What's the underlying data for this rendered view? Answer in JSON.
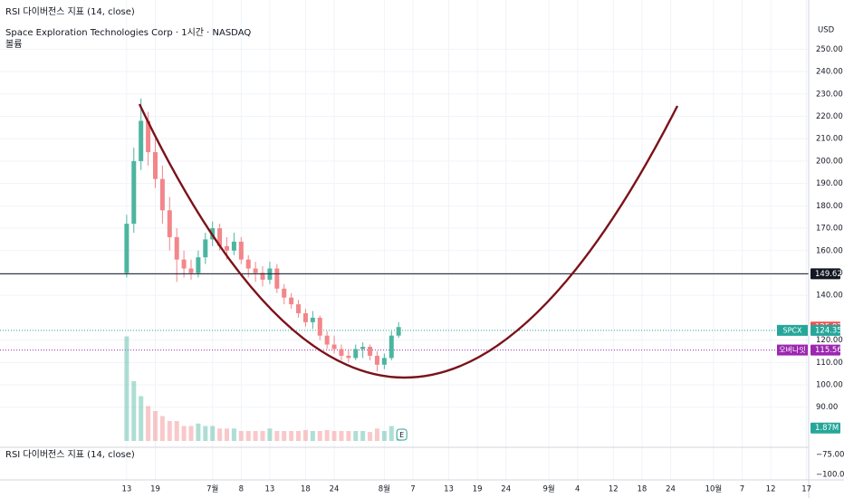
{
  "header": {
    "indicator": "RSI 다이버전스 지표 (14, close)",
    "symbol_line": "Space Exploration Technologies Corp · 1시간 · NASDAQ",
    "volume_label": "볼륨"
  },
  "chart_data": {
    "type": "candlestick",
    "currency": "USD",
    "x": [
      0,
      1,
      2,
      3,
      4,
      5,
      6,
      7,
      8,
      9,
      10,
      11,
      12,
      13,
      14,
      15,
      16,
      17,
      18,
      19,
      20,
      21,
      22,
      23,
      24,
      25,
      26,
      27,
      28,
      29,
      30,
      31,
      32,
      33,
      34,
      35,
      36,
      37,
      38
    ],
    "open": [
      150,
      172,
      200,
      218,
      204,
      192,
      178,
      166,
      156,
      152,
      150,
      157,
      165,
      170,
      162,
      160,
      164,
      156,
      152,
      150,
      147,
      152,
      143,
      139,
      136,
      132,
      128,
      130,
      122,
      118,
      116,
      113,
      112,
      116,
      117,
      113,
      109,
      112,
      122
    ],
    "high": [
      176,
      206,
      228,
      222,
      210,
      198,
      184,
      170,
      160,
      156,
      160,
      168,
      173,
      172,
      166,
      168,
      166,
      158,
      155,
      153,
      155,
      154,
      145,
      141,
      138,
      134,
      133,
      131,
      124,
      122,
      118,
      116,
      118,
      119,
      118,
      115,
      114,
      124,
      128
    ],
    "low": [
      148,
      168,
      196,
      198,
      188,
      172,
      160,
      146,
      148,
      147,
      148,
      154,
      162,
      160,
      156,
      158,
      154,
      148,
      146,
      144,
      145,
      141,
      136,
      134,
      130,
      126,
      125,
      120,
      116,
      114,
      111,
      110,
      111,
      112,
      111,
      106,
      107,
      111,
      121
    ],
    "close": [
      172,
      200,
      218,
      204,
      192,
      178,
      166,
      156,
      152,
      150,
      157,
      165,
      170,
      162,
      160,
      164,
      156,
      152,
      150,
      147,
      152,
      143,
      139,
      136,
      132,
      128,
      130,
      122,
      118,
      116,
      113,
      112,
      116,
      117,
      113,
      109,
      112,
      122,
      125.82
    ],
    "volume": {
      "values": [
        21,
        12,
        9,
        7,
        6,
        5,
        4,
        4,
        3,
        3,
        3.5,
        3,
        3,
        2.5,
        2.5,
        2.5,
        2,
        2,
        2,
        2,
        2.5,
        2,
        2,
        2,
        2,
        2.2,
        2,
        2,
        2.2,
        2,
        2,
        2,
        2,
        2,
        1.8,
        2.5,
        2,
        3,
        1.87
      ],
      "last_label": "1.87M",
      "ylim": [
        0,
        25
      ]
    },
    "colors": {
      "up": "#4cb5a0",
      "down": "#f2868a"
    },
    "xlim": [
      -17.7,
      95.3
    ],
    "xticks": [
      {
        "value": 0,
        "label": "13"
      },
      {
        "value": 4,
        "label": "19"
      },
      {
        "value": 12,
        "label": "7월"
      },
      {
        "value": 16,
        "label": "8"
      },
      {
        "value": 20,
        "label": "13"
      },
      {
        "value": 25,
        "label": "18"
      },
      {
        "value": 29,
        "label": "24"
      },
      {
        "value": 36,
        "label": "8월"
      },
      {
        "value": 40,
        "label": "7"
      },
      {
        "value": 45,
        "label": "13"
      },
      {
        "value": 49,
        "label": "19"
      },
      {
        "value": 53,
        "label": "24"
      },
      {
        "value": 59,
        "label": "9월"
      },
      {
        "value": 63,
        "label": "4"
      },
      {
        "value": 68,
        "label": "12"
      },
      {
        "value": 72,
        "label": "18"
      },
      {
        "value": 76,
        "label": "24"
      },
      {
        "value": 82,
        "label": "10월"
      },
      {
        "value": 86,
        "label": "7"
      },
      {
        "value": 90,
        "label": "12"
      },
      {
        "value": 95,
        "label": "17"
      }
    ],
    "ylim": [
      72.9,
      272
    ],
    "yticks": [
      {
        "value": 90,
        "label": "90.00"
      },
      {
        "value": 100,
        "label": "100.00"
      },
      {
        "value": 110,
        "label": "110.00"
      },
      {
        "value": 120,
        "label": "120.00"
      },
      {
        "value": 140,
        "label": "140.00"
      },
      {
        "value": 150,
        "label": "150.00"
      },
      {
        "value": 160,
        "label": "160.00"
      },
      {
        "value": 170,
        "label": "170.00"
      },
      {
        "value": 180,
        "label": "180.00"
      },
      {
        "value": 190,
        "label": "190.00"
      },
      {
        "value": 200,
        "label": "200.00"
      },
      {
        "value": 210,
        "label": "210.00"
      },
      {
        "value": 220,
        "label": "220.00"
      },
      {
        "value": 230,
        "label": "230.00"
      },
      {
        "value": 240,
        "label": "240.00"
      },
      {
        "value": 250,
        "label": "250.00"
      }
    ],
    "price_line": 149.62,
    "markers": [
      {
        "name": "SPCX",
        "value": 124.35,
        "color": "#26a69a"
      },
      {
        "name": "오버나잇",
        "value": 115.56,
        "color": "#9c27b0"
      }
    ],
    "event_marker": "E",
    "rsi_pane": {
      "title": "RSI 다이버전스 지표 (14, close)",
      "yticks": [
        {
          "value": -75,
          "label": "−75.00"
        },
        {
          "value": -100,
          "label": "−100.00"
        }
      ]
    }
  }
}
